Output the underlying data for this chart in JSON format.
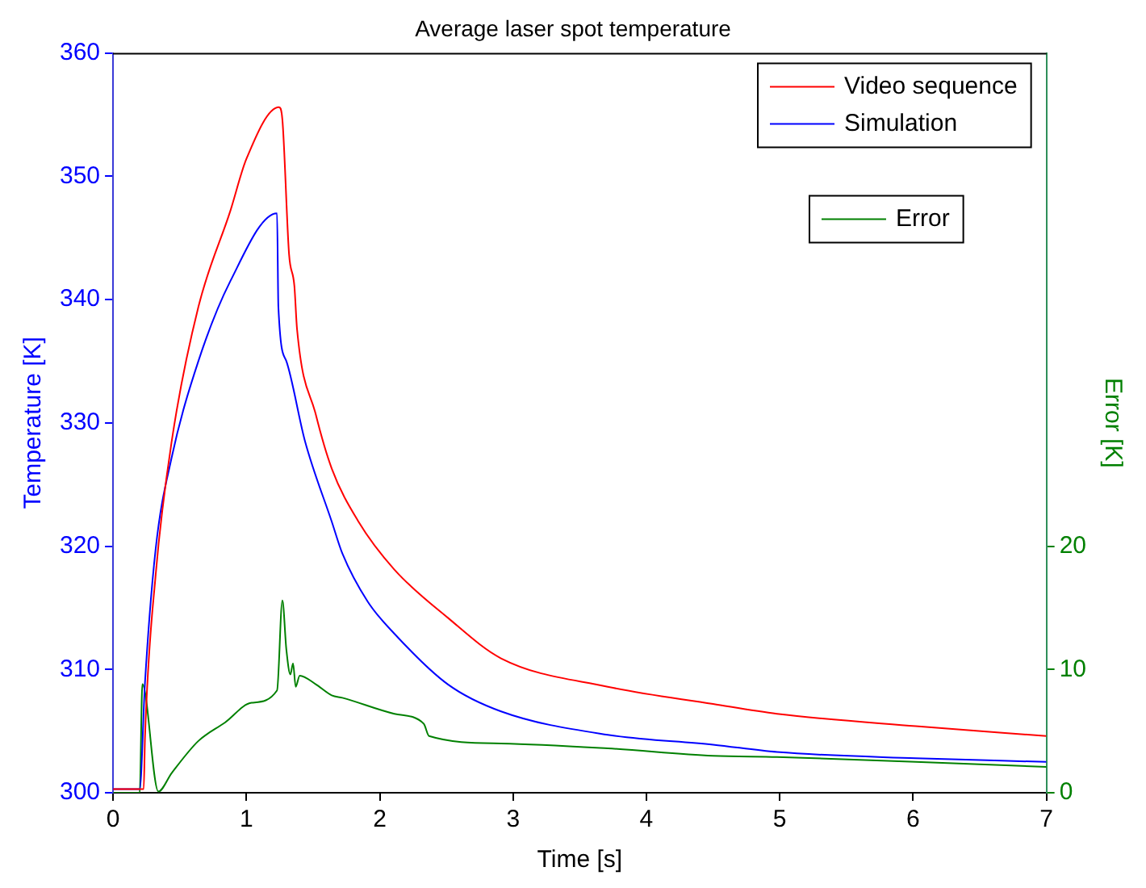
{
  "chart_data": {
    "type": "line",
    "title": "Average laser spot temperature",
    "xlabel": "Time [s]",
    "ylabel": "Temperature [K]",
    "y2label": "Error [K]",
    "xlim": [
      0,
      7
    ],
    "xticks": [
      0,
      1,
      2,
      3,
      4,
      5,
      6,
      7
    ],
    "ylim": [
      300,
      360
    ],
    "yticks": [
      300,
      310,
      320,
      330,
      340,
      350,
      360
    ],
    "y2lim": [
      0,
      60
    ],
    "y2ticks": [
      0,
      10,
      20
    ],
    "grid": false,
    "legend": "top right",
    "marker": "none",
    "line_style": "solid",
    "series": [
      {
        "name": "Video sequence",
        "color": "#ff0000",
        "x": [
          0,
          0.23,
          0.24,
          0.32,
          0.44,
          0.64,
          0.88,
          1.0,
          1.245,
          1.27,
          1.32,
          1.36,
          1.38,
          1.52,
          1.64,
          1.84,
          2.11,
          2.51,
          2.91,
          3.71,
          4.5,
          4.98,
          6.02,
          7
        ],
        "values": [
          300.3,
          300.3,
          304.6,
          317.7,
          328.5,
          339.4,
          347.2,
          351.4,
          355.6,
          354.6,
          343.7,
          341.1,
          337.6,
          330.7,
          326.3,
          322,
          318.1,
          314.2,
          310.9,
          308.6,
          307.2,
          306.4,
          305.4,
          304.6
        ]
      },
      {
        "name": "Simulation",
        "color": "#0000ff",
        "x": [
          0,
          0.2,
          0.24,
          0.32,
          0.44,
          0.64,
          0.88,
          1.23,
          1.24,
          1.3,
          1.44,
          1.64,
          1.72,
          1.91,
          2.11,
          2.51,
          2.91,
          3.71,
          4.5,
          4.98,
          6.02,
          7
        ],
        "values": [
          300.3,
          300.3,
          309,
          319.8,
          327.2,
          335,
          341.5,
          347,
          339.4,
          335,
          328.5,
          322,
          319.4,
          315.5,
          312.9,
          308.8,
          306.6,
          304.7,
          303.9,
          303.3,
          302.8,
          302.5
        ]
      },
      {
        "name": "Error",
        "color": "#008000",
        "axis": "y2",
        "x": [
          0,
          0.2,
          0.22,
          0.34,
          0.44,
          0.64,
          0.84,
          1.04,
          1.23,
          1.27,
          1.3,
          1.33,
          1.35,
          1.37,
          1.4,
          1.52,
          1.64,
          1.72,
          2.11,
          2.33,
          2.37,
          2.91,
          3.71,
          4.5,
          4.98,
          6.02,
          7
        ],
        "values": [
          0,
          0,
          8.8,
          0.1,
          1.6,
          4.2,
          5.7,
          7.3,
          8.3,
          15.6,
          11.6,
          9.6,
          10.5,
          8.6,
          9.5,
          8.8,
          7.9,
          7.7,
          6.4,
          5.6,
          4.6,
          4,
          3.6,
          3,
          2.9,
          2.5,
          2.1
        ]
      }
    ]
  }
}
